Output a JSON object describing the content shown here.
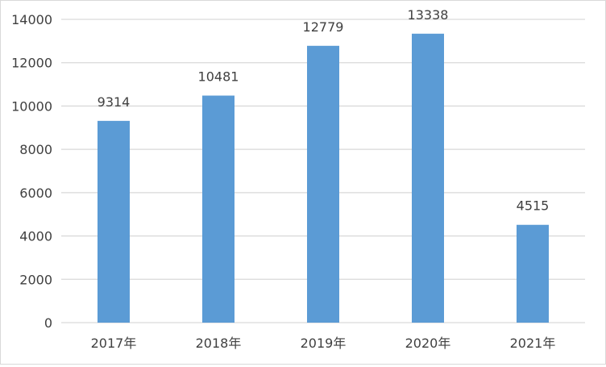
{
  "chart_data": {
    "type": "bar",
    "categories": [
      "2017年",
      "2018年",
      "2019年",
      "2020年",
      "2021年"
    ],
    "values": [
      9314,
      10481,
      12779,
      13338,
      4515
    ],
    "data_labels": [
      "9314",
      "10481",
      "12779",
      "13338",
      "4515"
    ],
    "title": "",
    "xlabel": "",
    "ylabel": "",
    "ylim": [
      0,
      14000
    ],
    "yticks": [
      0,
      2000,
      4000,
      6000,
      8000,
      10000,
      12000,
      14000
    ],
    "ytick_labels": [
      "0",
      "2000",
      "4000",
      "6000",
      "8000",
      "10000",
      "12000",
      "14000"
    ],
    "grid": true,
    "legend": "none",
    "colors": {
      "bar": "#5b9bd5",
      "grid": "#d9d9d9",
      "text": "#404040"
    }
  }
}
